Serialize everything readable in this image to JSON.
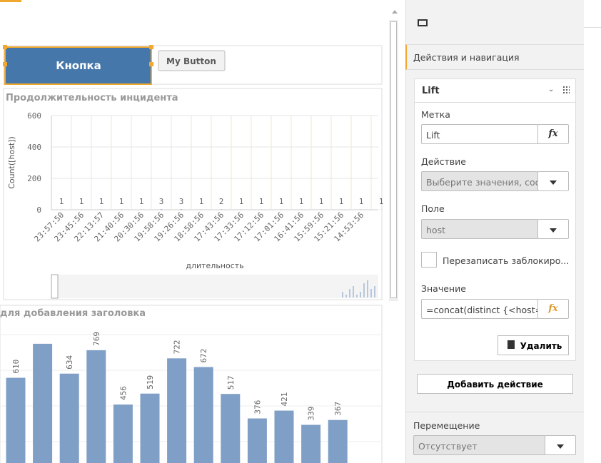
{
  "canvas": {
    "buttons": [
      "Кнопка",
      "My Button"
    ]
  },
  "chart_data": [
    {
      "type": "bar",
      "title": "Продолжительность инцидента",
      "y_label": "Count([host])",
      "x_label": "длительность",
      "categories": [
        "23:57:50",
        "23:45:56",
        "22:13:57",
        "21:40:56",
        "20:30:56",
        "19:58:56",
        "19:26:56",
        "18:58:56",
        "17:43:56",
        "17:33:56",
        "17:12:56",
        "17:01:56",
        "16:41:56",
        "15:59:56",
        "15:21:56",
        "14:53:56",
        null
      ],
      "values": [
        1,
        1,
        1,
        1,
        1,
        3,
        3,
        1,
        2,
        1,
        1,
        1,
        1,
        1,
        1,
        1,
        1
      ],
      "ylim": [
        0,
        600
      ],
      "yticks": [
        0,
        200,
        400,
        600
      ],
      "color": "#7a9cc6",
      "grid": true
    },
    {
      "type": "bar",
      "title": "для добавления заголовка",
      "values": [
        610,
        806,
        634,
        769,
        456,
        519,
        722,
        672,
        517,
        376,
        421,
        339,
        367
      ],
      "ylim": [
        0,
        900
      ],
      "color": "#7f9fc6"
    }
  ],
  "panel": {
    "section": "Действия и навигация",
    "action_name": "Lift",
    "label_caption": "Метка",
    "label_value": "Lift",
    "fx": "fx",
    "action_caption": "Действие",
    "action_value": "Выберите значения, соот",
    "field_caption": "Поле",
    "field_value": "host",
    "overwrite": "Перезаписать заблокиро...",
    "value_caption": "Значение",
    "value_value": "=concat(distinct {<host={\"",
    "delete": "Удалить",
    "add_action": "Добавить действие",
    "nav_caption": "Перемещение",
    "nav_value": "Отсутствует"
  }
}
